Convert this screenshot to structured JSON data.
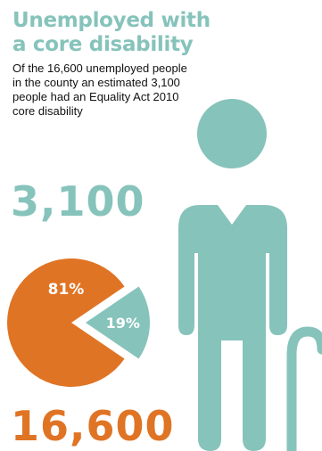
{
  "header": {
    "title_line1": "Unemployed with",
    "title_line2": "a core disability",
    "description_lines": [
      "Of the 16,600 unemployed people",
      "in the county an estimated 3,100",
      "people had an Equality Act 2010",
      "core disability"
    ]
  },
  "figures": {
    "disabled_count": "3,100",
    "total_unemployed": "16,600"
  },
  "colors": {
    "teal": "#86c3bb",
    "orange": "#e07425",
    "text": "#111111",
    "white": "#ffffff"
  },
  "chart_data": {
    "type": "pie",
    "categories": [
      "",
      ""
    ],
    "values": [
      81,
      19
    ],
    "labels": [
      "81%",
      "19%"
    ],
    "exploded": [
      false,
      true
    ],
    "colors": [
      "#e07425",
      "#86c3bb"
    ]
  },
  "icons": {
    "person": "person-with-cane-icon"
  }
}
